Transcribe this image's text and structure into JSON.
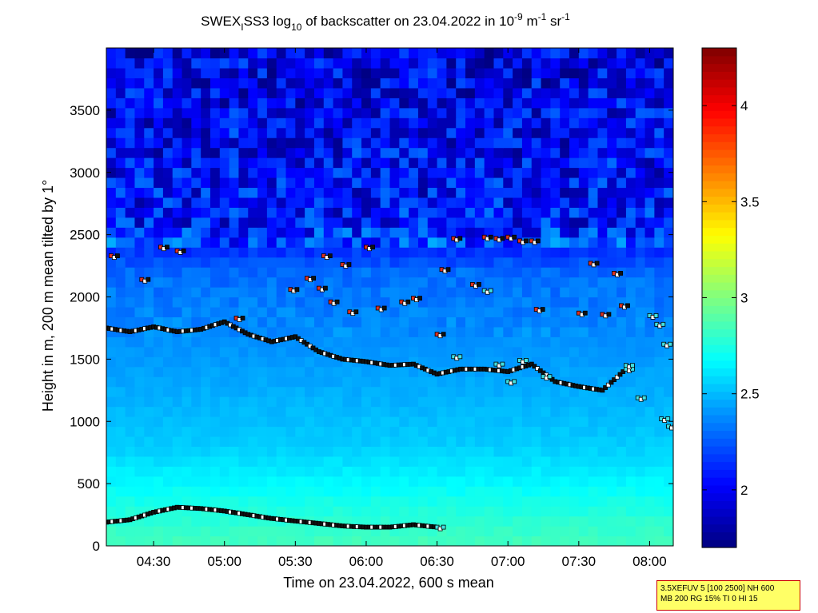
{
  "chart_data": {
    "type": "heatmap",
    "title": {
      "prefix": "SWEX",
      "sub1": "I",
      "mid": "SS3 log",
      "sub2": "10",
      "suffix": " of backscatter on 23.04.2022 in 10",
      "sup1": "-9",
      "unit1": " m",
      "sup2": "-1",
      "unit2": " sr",
      "sup3": "-1"
    },
    "xlabel": "Time on 23.04.2022, 600 s mean",
    "ylabel": "Height in m, 200 m mean tilted by 1°",
    "x_range": [
      "04:10",
      "08:10"
    ],
    "ylim": [
      0,
      4000
    ],
    "x_ticks": [
      "04:30",
      "05:00",
      "05:30",
      "06:00",
      "06:30",
      "07:00",
      "07:30",
      "08:00"
    ],
    "y_ticks": [
      0,
      500,
      1000,
      1500,
      2000,
      2500,
      3000,
      3500
    ],
    "colorbar": {
      "range": [
        1.7,
        4.3
      ],
      "ticks": [
        2,
        2.5,
        3,
        3.5,
        4
      ],
      "colormap": "jet"
    },
    "background_field": {
      "description_levels": [
        {
          "height_m": 0,
          "value": 2.85
        },
        {
          "height_m": 300,
          "value": 2.75
        },
        {
          "height_m": 800,
          "value": 2.55
        },
        {
          "height_m": 1500,
          "value": 2.42
        },
        {
          "height_m": 2200,
          "value": 2.3
        },
        {
          "height_m": 2600,
          "value": 1.95
        },
        {
          "height_m": 4000,
          "value": 1.85
        }
      ]
    },
    "series": [
      {
        "name": "",
        "style": "black-boundary-layer",
        "points": [
          [
            "04:10",
            190
          ],
          [
            "04:20",
            210
          ],
          [
            "04:30",
            270
          ],
          [
            "04:40",
            310
          ],
          [
            "04:50",
            300
          ],
          [
            "05:00",
            280
          ],
          [
            "05:10",
            250
          ],
          [
            "05:20",
            220
          ],
          [
            "05:30",
            200
          ],
          [
            "05:40",
            180
          ],
          [
            "05:50",
            160
          ],
          [
            "06:00",
            150
          ],
          [
            "06:10",
            150
          ],
          [
            "06:20",
            170
          ],
          [
            "06:30",
            150
          ]
        ]
      },
      {
        "name": "",
        "style": "black-cloud-base",
        "points": [
          [
            "04:10",
            1750
          ],
          [
            "04:20",
            1720
          ],
          [
            "04:30",
            1760
          ],
          [
            "04:40",
            1720
          ],
          [
            "04:50",
            1740
          ],
          [
            "05:00",
            1800
          ],
          [
            "05:10",
            1700
          ],
          [
            "05:20",
            1640
          ],
          [
            "05:30",
            1680
          ],
          [
            "05:40",
            1560
          ],
          [
            "05:50",
            1500
          ],
          [
            "06:00",
            1480
          ],
          [
            "06:10",
            1450
          ],
          [
            "06:20",
            1460
          ],
          [
            "06:30",
            1380
          ],
          [
            "06:40",
            1420
          ],
          [
            "06:50",
            1420
          ],
          [
            "07:00",
            1400
          ],
          [
            "07:10",
            1460
          ],
          [
            "07:20",
            1320
          ],
          [
            "07:30",
            1280
          ],
          [
            "07:40",
            1250
          ],
          [
            "07:50",
            1420
          ]
        ]
      },
      {
        "name": "",
        "style": "upper-markers",
        "points": [
          [
            "04:12",
            2330
          ],
          [
            "04:25",
            2140
          ],
          [
            "04:33",
            2400
          ],
          [
            "04:40",
            2370
          ],
          [
            "05:05",
            1830
          ],
          [
            "05:28",
            2060
          ],
          [
            "05:35",
            2150
          ],
          [
            "05:40",
            2070
          ],
          [
            "05:42",
            2330
          ],
          [
            "05:45",
            1960
          ],
          [
            "05:50",
            2260
          ],
          [
            "05:53",
            1880
          ],
          [
            "06:00",
            2400
          ],
          [
            "06:05",
            1910
          ],
          [
            "06:15",
            1960
          ],
          [
            "06:20",
            1990
          ],
          [
            "06:30",
            1700
          ],
          [
            "06:32",
            2220
          ],
          [
            "06:37",
            2470
          ],
          [
            "06:45",
            2100
          ],
          [
            "06:50",
            2480
          ],
          [
            "06:55",
            2470
          ],
          [
            "07:00",
            2480
          ],
          [
            "07:05",
            2450
          ],
          [
            "07:10",
            2450
          ],
          [
            "07:12",
            1900
          ],
          [
            "07:30",
            1870
          ],
          [
            "07:35",
            2270
          ],
          [
            "07:40",
            1860
          ],
          [
            "07:45",
            2190
          ],
          [
            "07:48",
            1930
          ]
        ]
      },
      {
        "name": "",
        "style": "cyan-markers",
        "points": [
          [
            "06:37",
            1520
          ],
          [
            "06:50",
            2050
          ],
          [
            "06:55",
            1460
          ],
          [
            "07:00",
            1320
          ],
          [
            "07:05",
            1490
          ],
          [
            "07:15",
            1360
          ],
          [
            "07:50",
            1450
          ],
          [
            "07:55",
            1190
          ],
          [
            "08:00",
            1850
          ],
          [
            "08:03",
            1780
          ],
          [
            "08:05",
            1020
          ],
          [
            "08:06",
            1620
          ],
          [
            "08:08",
            960
          ]
        ]
      }
    ]
  },
  "info_box": {
    "line1": "3.5XEFUV 5 [100 2500] NH 600",
    "line2": "MB 200 RG 15% TI 0 HI 15"
  }
}
